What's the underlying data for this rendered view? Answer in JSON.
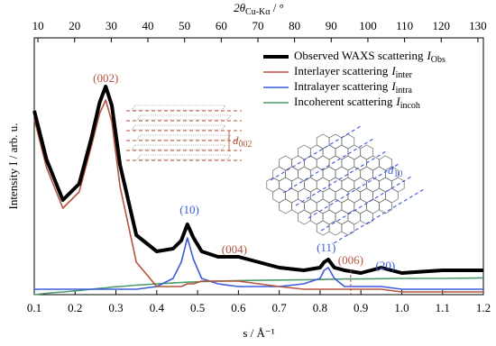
{
  "chart_data": {
    "type": "line",
    "xlabel": "s / Å⁻¹",
    "ylabel": "Intensity I / arb. u.",
    "x2label": {
      "main": "2θ",
      "sub": "Cu-Kα",
      "unit": " / °"
    },
    "xlim": [
      0.1,
      1.2
    ],
    "xticks": [
      0.1,
      0.2,
      0.3,
      0.4,
      0.5,
      0.6,
      0.7,
      0.8,
      0.9,
      {
        "value": 1,
        "label": "1.0"
      },
      1.1,
      1.2
    ],
    "x2lim": [
      9,
      131.5
    ],
    "x2ticks": [
      10,
      20,
      30,
      40,
      50,
      60,
      70,
      80,
      90,
      100,
      110,
      120,
      130
    ],
    "ylim": [
      0,
      95
    ],
    "legend": "upper right",
    "x": [
      0.1,
      0.13,
      0.17,
      0.21,
      0.24,
      0.26,
      0.275,
      0.29,
      0.31,
      0.35,
      0.4,
      0.44,
      0.46,
      0.475,
      0.49,
      0.51,
      0.55,
      0.6,
      0.65,
      0.7,
      0.76,
      0.8,
      0.81,
      0.82,
      0.835,
      0.86,
      0.9,
      0.95,
      1.0,
      1.1,
      1.2
    ],
    "series": [
      {
        "name": "Observed WAXS scattering",
        "symbol": "I",
        "subscript": "Obs",
        "color": "#000000",
        "width": 4,
        "values": [
          68,
          50,
          35,
          41,
          58,
          71,
          77,
          70,
          48,
          22,
          16,
          17,
          20,
          26,
          21,
          16,
          14,
          14,
          12,
          10,
          9,
          10,
          12,
          13,
          10,
          9,
          8,
          10,
          8,
          9,
          9
        ]
      },
      {
        "name": "Interlayer scattering",
        "symbol": "I",
        "subscript": "inter",
        "color": "#b5533c",
        "width": 1.6,
        "values": [
          65,
          47,
          32,
          38,
          55,
          67,
          72,
          64,
          40,
          12,
          3,
          3,
          3,
          4,
          4,
          5,
          5,
          5,
          4,
          3,
          2,
          2,
          2,
          2,
          2,
          2,
          2,
          2,
          1,
          1,
          1
        ]
      },
      {
        "name": "Intralayer scattering",
        "symbol": "I",
        "subscript": "intra",
        "color": "#3b5bdb",
        "width": 1.6,
        "values": [
          2,
          2,
          2,
          2,
          2,
          2,
          2,
          2,
          2,
          2,
          3,
          6,
          12,
          21,
          13,
          6,
          4,
          3,
          3,
          3,
          4,
          6,
          9,
          10,
          6,
          3,
          3,
          3,
          2,
          2,
          2
        ]
      },
      {
        "name": "Incoherent scattering",
        "symbol": "I",
        "subscript": "incoh",
        "color": "#4a9a6a",
        "width": 1.6,
        "values": [
          0,
          0.5,
          1,
          1.5,
          2,
          2.3,
          2.5,
          2.8,
          3,
          3.5,
          4,
          4.3,
          4.5,
          4.6,
          4.7,
          4.8,
          5,
          5.2,
          5.3,
          5.4,
          5.5,
          5.6,
          5.6,
          5.7,
          5.7,
          5.8,
          5.8,
          5.9,
          6,
          6,
          6.2
        ]
      }
    ],
    "annotations": [
      {
        "text": "(002)",
        "x": 0.275,
        "color": "#b5533c"
      },
      {
        "text": "(10)",
        "x": 0.48,
        "color": "#3b5bdb"
      },
      {
        "text": "(004)",
        "x": 0.59,
        "color": "#b5533c"
      },
      {
        "text": "(11)",
        "x": 0.815,
        "color": "#3b5bdb"
      },
      {
        "text": "(006)",
        "x": 0.875,
        "color": "#b5533c"
      },
      {
        "text": "(20)",
        "x": 0.96,
        "color": "#3b5bdb"
      }
    ],
    "spacings": [
      {
        "symbol": "d",
        "subscript": "002",
        "color": "#b5533c"
      },
      {
        "symbol": "d",
        "subscript": "10",
        "color": "#3b5bdb"
      }
    ]
  }
}
